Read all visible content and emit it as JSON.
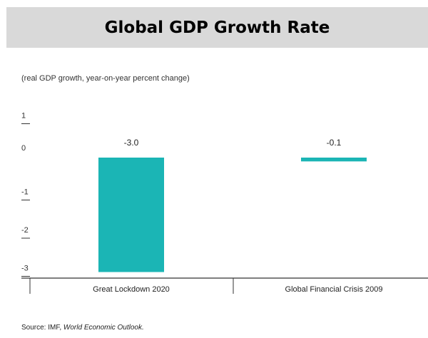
{
  "title": "Global GDP Growth Rate",
  "subtitle": "(real GDP growth, year-on-year percent change)",
  "source_prefix": "Source: IMF,",
  "source_italic": "World Economic Outlook.",
  "colors": {
    "bar": "#1bb5b5",
    "band": "#d9d9d9",
    "axis": "#333333"
  },
  "chart_data": {
    "type": "bar",
    "title": "Global GDP Growth Rate",
    "subtitle": "(real GDP growth, year-on-year percent change)",
    "categories": [
      "Great Lockdown 2020",
      "Global Financial Crisis 2009"
    ],
    "values": [
      -3.0,
      -0.1
    ],
    "value_labels": [
      "-3.0",
      "-0.1"
    ],
    "yticks": [
      1,
      0,
      -1,
      -2,
      -3
    ],
    "ylim": [
      -3.1,
      1.2
    ],
    "grid": false
  }
}
